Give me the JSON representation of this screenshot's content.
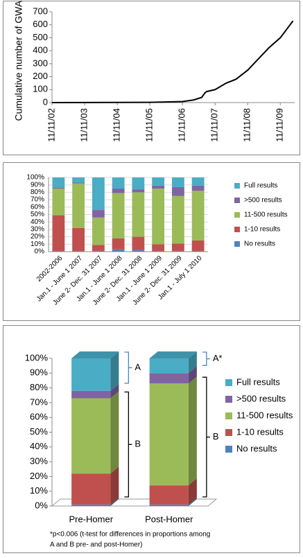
{
  "chart_data": [
    {
      "type": "line",
      "y_label": "Cumulative number of GWAS",
      "x": [
        2002.86,
        2005.86,
        2006.86,
        2007.2,
        2007.45,
        2007.55,
        2007.6,
        2007.86,
        2008.2,
        2008.5,
        2008.86,
        2009.2,
        2009.5,
        2009.86,
        2010.1,
        2010.25
      ],
      "series": [
        {
          "name": "GWAS",
          "color": "#000000",
          "values": [
            0,
            2,
            8,
            20,
            40,
            75,
            85,
            100,
            150,
            180,
            250,
            340,
            420,
            500,
            580,
            630
          ]
        }
      ],
      "xlim": [
        2002.86,
        2010.3
      ],
      "xticks": [
        {
          "value": 2002.86,
          "label": "11/11/02"
        },
        {
          "value": 2003.86,
          "label": "11/11/03"
        },
        {
          "value": 2004.86,
          "label": "11/11/04"
        },
        {
          "value": 2005.86,
          "label": "11/11/05"
        },
        {
          "value": 2006.86,
          "label": "11/11/06"
        },
        {
          "value": 2007.86,
          "label": "11/11/07"
        },
        {
          "value": 2008.86,
          "label": "11/11/08"
        },
        {
          "value": 2009.86,
          "label": "11/11/09"
        }
      ],
      "ylim": [
        0,
        700
      ],
      "yticks": [
        0,
        100,
        200,
        300,
        400,
        500,
        600,
        700
      ],
      "grid": false
    },
    {
      "type": "bar",
      "stacked": true,
      "grid": true,
      "legend": "right",
      "categories": [
        "2002-2006",
        "Jan.1 - June 1 2007",
        "June 2- Dec. 31 2007",
        "Jan.1 - June 1 2008",
        "June 2- Dec. 31 2008",
        "Jan.1 - June 1 2009",
        "June 2- Dec. 31 2009",
        "Jan.1 - July 1 2010"
      ],
      "series": [
        {
          "name": "No results",
          "color": "#4f81bd",
          "values": [
            1,
            1,
            1,
            3,
            2,
            1,
            1,
            1
          ]
        },
        {
          "name": "1-10 results",
          "color": "#c0504d",
          "values": [
            48,
            31,
            8,
            15,
            18,
            9,
            10,
            14
          ]
        },
        {
          "name": "11-500 results",
          "color": "#9bbb59",
          "values": [
            36,
            60,
            37,
            61,
            60,
            75,
            64,
            67
          ]
        },
        {
          "name": ">500 results",
          "color": "#8064a2",
          "values": [
            1,
            1,
            10,
            6,
            4,
            4,
            12,
            7
          ]
        },
        {
          "name": "Full results",
          "color": "#4bacc6",
          "values": [
            14,
            7,
            44,
            15,
            16,
            11,
            13,
            11
          ]
        }
      ],
      "ylim": [
        0,
        100
      ],
      "yticks": [
        {
          "value": 0,
          "label": "0%"
        },
        {
          "value": 10,
          "label": "10%"
        },
        {
          "value": 20,
          "label": "20%"
        },
        {
          "value": 30,
          "label": "30%"
        },
        {
          "value": 40,
          "label": "40%"
        },
        {
          "value": 50,
          "label": "50%"
        },
        {
          "value": 60,
          "label": "60%"
        },
        {
          "value": 70,
          "label": "70%"
        },
        {
          "value": 80,
          "label": "80%"
        },
        {
          "value": 90,
          "label": "90%"
        },
        {
          "value": 100,
          "label": "100%"
        }
      ]
    },
    {
      "type": "bar",
      "stacked": true,
      "grid": false,
      "legend": "right",
      "categories": [
        "Pre-Homer",
        "Post-Homer"
      ],
      "series": [
        {
          "name": "No results",
          "color": "#4f81bd",
          "values": [
            1,
            1
          ]
        },
        {
          "name": "1-10 results",
          "color": "#c0504d",
          "values": [
            21,
            13
          ]
        },
        {
          "name": "11-500 results",
          "color": "#9bbb59",
          "values": [
            51,
            69
          ]
        },
        {
          "name": ">500 results",
          "color": "#8064a2",
          "values": [
            5,
            7
          ]
        },
        {
          "name": "Full results",
          "color": "#4bacc6",
          "values": [
            22,
            10
          ]
        }
      ],
      "ylim": [
        0,
        100
      ],
      "yticks": [
        {
          "value": 0,
          "label": "0%"
        },
        {
          "value": 10,
          "label": "10%"
        },
        {
          "value": 20,
          "label": "20%"
        },
        {
          "value": 30,
          "label": "30%"
        },
        {
          "value": 40,
          "label": "40%"
        },
        {
          "value": 50,
          "label": "50%"
        },
        {
          "value": 60,
          "label": "60%"
        },
        {
          "value": 70,
          "label": "70%"
        },
        {
          "value": 80,
          "label": "80%"
        },
        {
          "value": 90,
          "label": "90%"
        },
        {
          "value": 100,
          "label": "100%"
        }
      ],
      "bracket_labels": [
        [
          "A",
          "B"
        ],
        [
          "A*",
          "B"
        ]
      ],
      "bracket_colors": [
        "#4f81bd",
        "#000000"
      ],
      "footnote": [
        "*p<0.006 (t-test for differences in proportions among",
        "A and B pre- and post-Homer)"
      ]
    }
  ]
}
